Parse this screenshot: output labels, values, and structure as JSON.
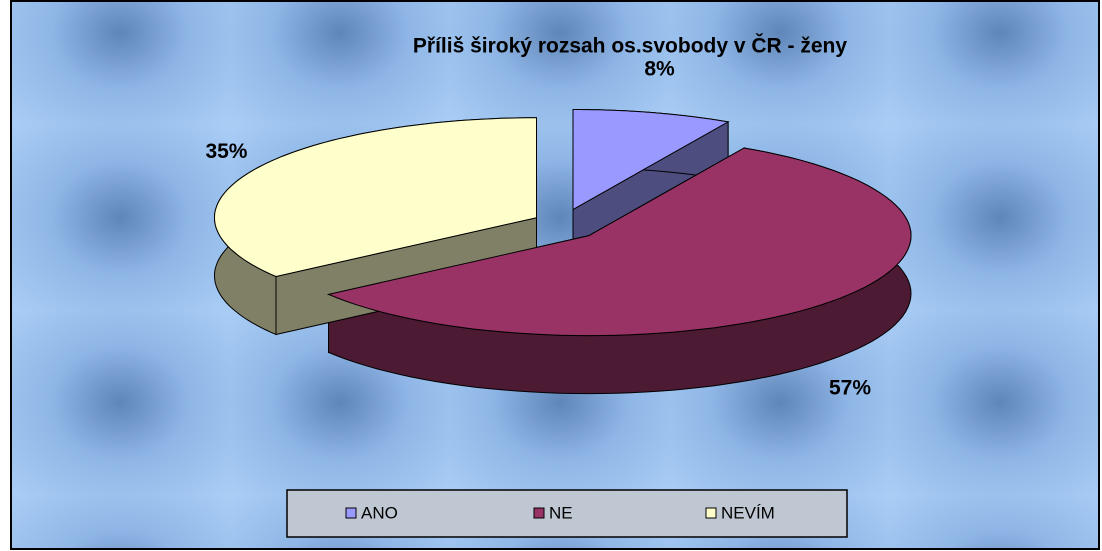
{
  "chart_data": {
    "type": "pie",
    "title": "Příliš široký rozsah os.svobody v ČR - ženy",
    "categories": [
      "ANO",
      "NE",
      "NEVÍM"
    ],
    "values": [
      8,
      57,
      35
    ],
    "value_labels": [
      "8%",
      "57%",
      "35%"
    ],
    "colors": [
      "#9999ff",
      "#993366",
      "#ffffcc"
    ],
    "legend": "bottom"
  }
}
